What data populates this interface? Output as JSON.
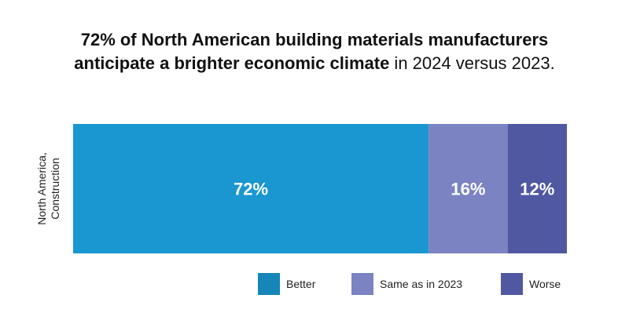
{
  "title": {
    "bold_line1": "72% of North American building materials manufacturers",
    "bold_line2": "anticipate a brighter economic climate",
    "normal_line2": " in 2024 versus 2023."
  },
  "chart_data": {
    "type": "bar",
    "orientation": "horizontal",
    "stacked": true,
    "categories": [
      "North America, Construction"
    ],
    "category_label_lines": [
      "North America,",
      "Construction"
    ],
    "series": [
      {
        "name": "Better",
        "values": [
          72
        ],
        "label": "72%",
        "color": "#1a96d0"
      },
      {
        "name": "Same as in 2023",
        "values": [
          16
        ],
        "label": "16%",
        "color": "#7b83c2"
      },
      {
        "name": "Worse",
        "values": [
          12
        ],
        "label": "12%",
        "color": "#5058a2"
      }
    ],
    "xlim": [
      0,
      100
    ],
    "grid": false,
    "legend_position": "bottom-right"
  },
  "legend": {
    "items": [
      {
        "label": "Better",
        "color": "#1686b8"
      },
      {
        "label": "Same as in 2023",
        "color": "#7b83c2"
      },
      {
        "label": "Worse",
        "color": "#5058a2"
      }
    ]
  }
}
